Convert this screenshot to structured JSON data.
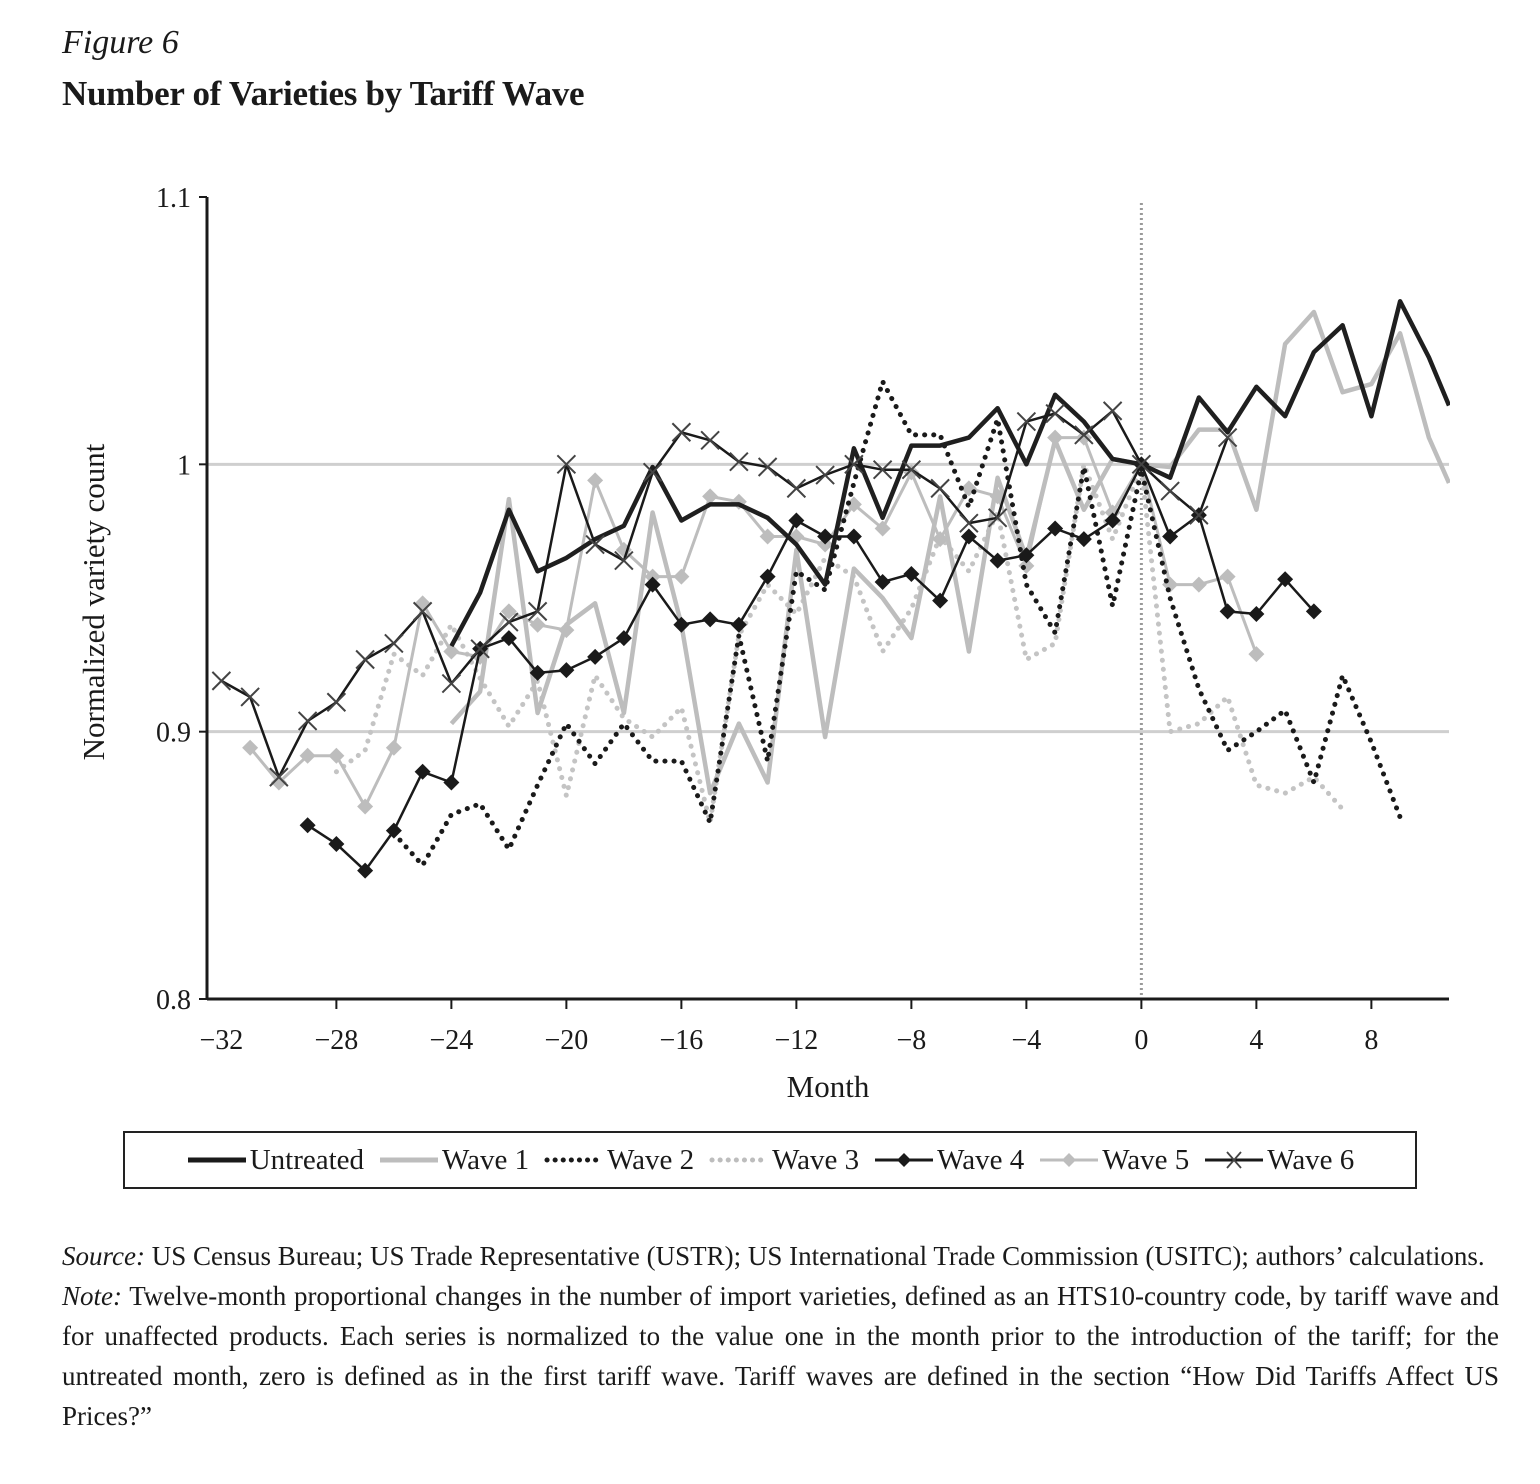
{
  "figure": {
    "label": "Figure 6",
    "title": "Number of Varieties by Tariff Wave"
  },
  "chart_data": {
    "type": "line",
    "title": "Number of Varieties by Tariff Wave",
    "xlabel": "Month",
    "ylabel": "Normalized variety count",
    "xlim": [
      -32.5,
      10.7
    ],
    "ylim": [
      0.8,
      1.1
    ],
    "x_ticks": [
      -32,
      -28,
      -24,
      -20,
      -16,
      -12,
      -8,
      -4,
      0,
      4,
      8
    ],
    "x_tick_labels": [
      "−32",
      "−28",
      "−24",
      "−20",
      "−16",
      "−12",
      "−8",
      "−4",
      "0",
      "4",
      "8"
    ],
    "y_ticks": [
      0.8,
      0.9,
      1.0,
      1.1
    ],
    "y_tick_labels": [
      "0.8",
      "0.9",
      "1",
      "1.1"
    ],
    "gridlines_y": [
      0.9,
      1.0
    ],
    "vertical_reference_line_x": 0,
    "legend_placement": "bottom",
    "series": [
      {
        "name": "Untreated",
        "style": "solid-thick",
        "color": "#1a1a1a",
        "x": [
          -24,
          -23,
          -22,
          -21,
          -20,
          -19,
          -18,
          -17,
          -16,
          -15,
          -14,
          -13,
          -12,
          -11,
          -10,
          -9,
          -8,
          -7,
          -6,
          -5,
          -4,
          -3,
          -2,
          -1,
          0,
          1,
          2,
          3,
          4,
          5,
          6,
          7,
          8,
          9,
          10,
          10.7
        ],
        "y": [
          0.932,
          0.952,
          0.983,
          0.96,
          0.965,
          0.972,
          0.977,
          0.999,
          0.979,
          0.985,
          0.985,
          0.98,
          0.97,
          0.955,
          1.006,
          0.98,
          1.007,
          1.007,
          1.01,
          1.021,
          1.0,
          1.026,
          1.016,
          1.002,
          1.0,
          0.995,
          1.025,
          1.012,
          1.029,
          1.018,
          1.042,
          1.052,
          1.018,
          1.061,
          1.04,
          1.022
        ]
      },
      {
        "name": "Wave 1",
        "style": "solid-thick-gray",
        "color": "#bdbdbd",
        "x": [
          -24,
          -23,
          -22,
          -21,
          -20,
          -19,
          -18,
          -17,
          -16,
          -15,
          -14,
          -13,
          -12,
          -11,
          -10,
          -9,
          -8,
          -7,
          -6,
          -5,
          -4,
          -3,
          -2,
          -1,
          0,
          1,
          2,
          3,
          4,
          5,
          6,
          7,
          8,
          9,
          10,
          10.7
        ],
        "y": [
          0.903,
          0.915,
          0.987,
          0.907,
          0.94,
          0.948,
          0.907,
          0.982,
          0.94,
          0.877,
          0.903,
          0.881,
          0.968,
          0.898,
          0.961,
          0.95,
          0.935,
          0.988,
          0.93,
          0.995,
          0.965,
          1.009,
          0.983,
          1.002,
          1.0,
          0.999,
          1.013,
          1.013,
          0.983,
          1.045,
          1.057,
          1.027,
          1.03,
          1.049,
          1.01,
          0.993
        ]
      },
      {
        "name": "Wave 2",
        "style": "dotted-black",
        "color": "#1a1a1a",
        "x": [
          -26,
          -25,
          -24,
          -23,
          -22,
          -21,
          -20,
          -19,
          -18,
          -17,
          -16,
          -15,
          -14,
          -13,
          -12,
          -11,
          -10,
          -9,
          -8,
          -7,
          -6,
          -5,
          -4,
          -3,
          -2,
          -1,
          0,
          1,
          2,
          3,
          4,
          5,
          6,
          7,
          8,
          9
        ],
        "y": [
          0.862,
          0.85,
          0.869,
          0.873,
          0.856,
          0.88,
          0.903,
          0.888,
          0.903,
          0.889,
          0.889,
          0.866,
          0.936,
          0.889,
          0.96,
          0.953,
          0.993,
          1.031,
          1.011,
          1.011,
          0.984,
          1.017,
          0.955,
          0.937,
          0.999,
          0.947,
          0.998,
          0.95,
          0.916,
          0.893,
          0.9,
          0.908,
          0.881,
          0.921,
          0.896,
          0.868
        ]
      },
      {
        "name": "Wave 3",
        "style": "dotted-gray",
        "color": "#bdbdbd",
        "x": [
          -28,
          -27,
          -26,
          -25,
          -24,
          -23,
          -22,
          -21,
          -20,
          -19,
          -18,
          -17,
          -16,
          -15,
          -14,
          -13,
          -12,
          -11,
          -10,
          -9,
          -8,
          -7,
          -6,
          -5,
          -4,
          -3,
          -2,
          -1,
          0,
          1,
          2,
          3,
          4,
          5,
          6,
          7
        ],
        "y": [
          0.885,
          0.893,
          0.929,
          0.921,
          0.94,
          0.92,
          0.902,
          0.919,
          0.876,
          0.921,
          0.905,
          0.898,
          0.909,
          0.866,
          0.936,
          0.955,
          0.944,
          0.965,
          0.958,
          0.93,
          0.946,
          0.973,
          0.96,
          0.982,
          0.927,
          0.933,
          1.0,
          0.972,
          0.999,
          0.9,
          0.903,
          0.913,
          0.88,
          0.877,
          0.883,
          0.871
        ]
      },
      {
        "name": "Wave 4",
        "style": "solid-black-diamond",
        "color": "#1a1a1a",
        "x": [
          -29,
          -28,
          -27,
          -26,
          -25,
          -24,
          -23,
          -22,
          -21,
          -20,
          -19,
          -18,
          -17,
          -16,
          -15,
          -14,
          -13,
          -12,
          -11,
          -10,
          -9,
          -8,
          -7,
          -6,
          -5,
          -4,
          -3,
          -2,
          -1,
          0,
          1,
          2,
          3,
          4,
          5,
          6
        ],
        "y": [
          0.865,
          0.858,
          0.848,
          0.863,
          0.885,
          0.881,
          0.931,
          0.935,
          0.922,
          0.923,
          0.928,
          0.935,
          0.955,
          0.94,
          0.942,
          0.94,
          0.958,
          0.979,
          0.973,
          0.973,
          0.956,
          0.959,
          0.949,
          0.973,
          0.964,
          0.966,
          0.976,
          0.972,
          0.979,
          1.0,
          0.973,
          0.981,
          0.945,
          0.944,
          0.957,
          0.945
        ]
      },
      {
        "name": "Wave 5",
        "style": "solid-gray-diamond",
        "color": "#bdbdbd",
        "x": [
          -31,
          -30,
          -29,
          -28,
          -27,
          -26,
          -25,
          -24,
          -23,
          -22,
          -21,
          -20,
          -19,
          -18,
          -17,
          -16,
          -15,
          -14,
          -13,
          -12,
          -11,
          -10,
          -9,
          -8,
          -7,
          -6,
          -5,
          -4,
          -3,
          -2,
          -1,
          0,
          1,
          2,
          3,
          4
        ],
        "y": [
          0.894,
          0.881,
          0.891,
          0.891,
          0.872,
          0.894,
          0.948,
          0.93,
          0.928,
          0.945,
          0.94,
          0.938,
          0.994,
          0.968,
          0.958,
          0.958,
          0.988,
          0.986,
          0.973,
          0.973,
          0.97,
          0.985,
          0.976,
          0.997,
          0.972,
          0.991,
          0.988,
          0.962,
          1.01,
          1.01,
          0.982,
          1.0,
          0.955,
          0.955,
          0.958,
          0.929
        ]
      },
      {
        "name": "Wave 6",
        "style": "solid-black-x",
        "color": "#1a1a1a",
        "x": [
          -32,
          -31,
          -30,
          -29,
          -28,
          -27,
          -26,
          -25,
          -24,
          -23,
          -22,
          -21,
          -20,
          -19,
          -18,
          -17,
          -16,
          -15,
          -14,
          -13,
          -12,
          -11,
          -10,
          -9,
          -8,
          -7,
          -6,
          -5,
          -4,
          -3,
          -2,
          -1,
          0,
          1,
          2,
          3
        ],
        "y": [
          0.919,
          0.913,
          0.883,
          0.904,
          0.911,
          0.927,
          0.933,
          0.945,
          0.918,
          0.931,
          0.941,
          0.945,
          1.0,
          0.97,
          0.964,
          0.997,
          1.012,
          1.009,
          1.001,
          0.999,
          0.991,
          0.996,
          1.0,
          0.998,
          0.998,
          0.991,
          0.978,
          0.98,
          1.016,
          1.019,
          1.011,
          1.02,
          1.0,
          0.99,
          0.981,
          1.01
        ]
      }
    ]
  },
  "legend": {
    "items": [
      {
        "label": "Untreated"
      },
      {
        "label": "Wave 1"
      },
      {
        "label": "Wave 2"
      },
      {
        "label": "Wave 3"
      },
      {
        "label": "Wave 4"
      },
      {
        "label": "Wave 5"
      },
      {
        "label": "Wave 6"
      }
    ]
  },
  "notes": {
    "source_label": "Source:",
    "source_text": " US Census Bureau; US Trade Representative (USTR); US International Trade Commission (USITC); authors’ calculations.",
    "note_label": "Note:",
    "note_text": " Twelve-month proportional changes in the number of import varieties, defined as an HTS10-country code, by tariff wave and for unaffected products. Each series is normalized to the value one in the month prior to the introduction of the tariff; for the untreated month, zero is defined as in the first tariff wave. Tariff waves are defined in the section “How Did Tariffs Affect US Prices?”"
  }
}
